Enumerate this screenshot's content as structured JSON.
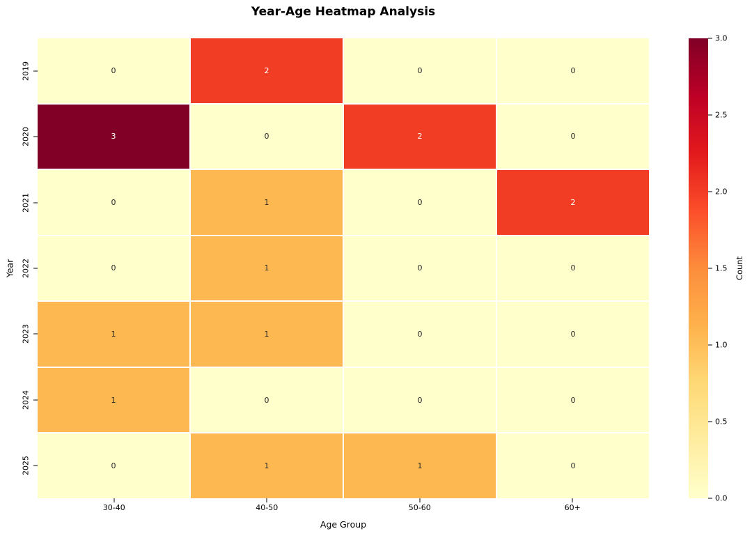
{
  "chart_data": {
    "type": "heatmap",
    "title": "Year-Age Heatmap Analysis",
    "xlabel": "Age Group",
    "ylabel": "Year",
    "rows": [
      "2019",
      "2020",
      "2021",
      "2022",
      "2023",
      "2024",
      "2025"
    ],
    "columns": [
      "30-40",
      "40-50",
      "50-60",
      "60+"
    ],
    "values": [
      [
        0,
        2,
        0,
        0
      ],
      [
        3,
        0,
        2,
        0
      ],
      [
        0,
        1,
        0,
        2
      ],
      [
        0,
        1,
        0,
        0
      ],
      [
        1,
        1,
        0,
        0
      ],
      [
        1,
        0,
        0,
        0
      ],
      [
        0,
        1,
        1,
        0
      ]
    ],
    "vmin": 0,
    "vmax": 3,
    "grid": false,
    "legend_position": "right-colorbar",
    "colormap_name": "YlOrRd",
    "value_colors": {
      "0": "#ffffcc",
      "1": "#feb852",
      "2": "#f23d25",
      "3": "#800026"
    },
    "annot_text_colors": {
      "0": "#262626",
      "1": "#262626",
      "2": "#ffffff",
      "3": "#ffffff"
    },
    "colorbar": {
      "label": "Count",
      "ticks": [
        0.0,
        0.5,
        1.0,
        1.5,
        2.0,
        2.5,
        3.0
      ],
      "tick_labels": [
        "0.0",
        "0.5",
        "1.0",
        "1.5",
        "2.0",
        "2.5",
        "3.0"
      ],
      "gradient_stops": [
        "#ffffcc",
        "#ffeda0",
        "#fed976",
        "#feb24c",
        "#fd8d3c",
        "#fc4e2a",
        "#e31a1c",
        "#bd0026",
        "#800026"
      ]
    }
  }
}
